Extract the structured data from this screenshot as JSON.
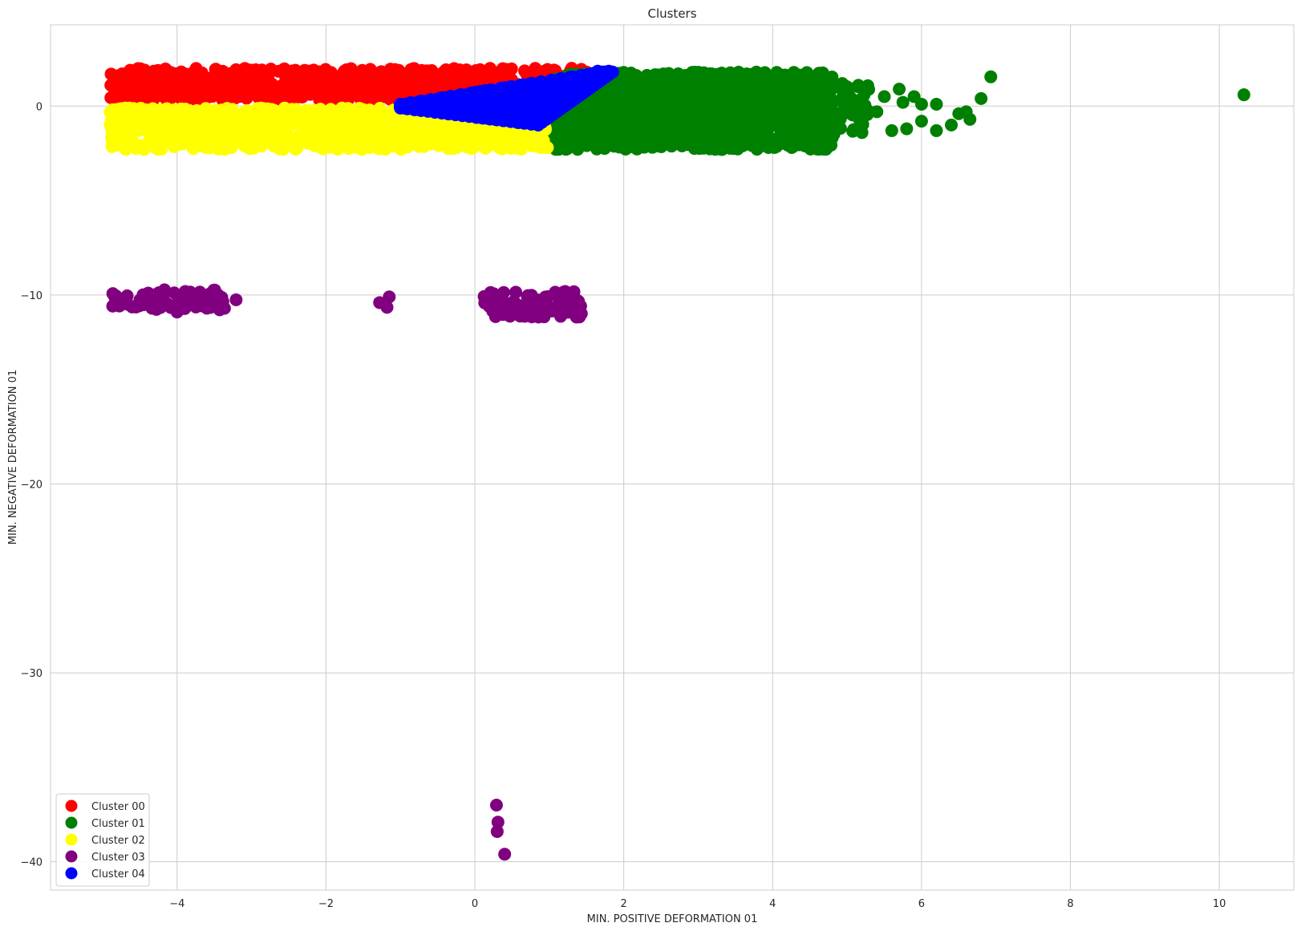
{
  "chart_data": {
    "type": "scatter",
    "title": "Clusters",
    "xlabel": "MIN. POSITIVE DEFORMATION 01",
    "ylabel": "MIN. NEGATIVE DEFORMATION 01",
    "xlim": [
      -5.7,
      11.0
    ],
    "ylim": [
      -41.5,
      4.3
    ],
    "xticks": [
      -4,
      -2,
      0,
      2,
      4,
      6,
      8,
      10
    ],
    "yticks": [
      0,
      -10,
      -20,
      -30,
      -40
    ],
    "xtick_labels": [
      "−4",
      "−2",
      "0",
      "2",
      "4",
      "6",
      "8",
      "10"
    ],
    "ytick_labels": [
      "0",
      "−10",
      "−20",
      "−30",
      "−40"
    ],
    "grid": true,
    "legend_position": "lower-left",
    "series": [
      {
        "name": "Cluster 00",
        "color": "#ff0000",
        "regions": [
          {
            "x": [
              -4.8,
              1.5
            ],
            "y": [
              0.3,
              2.0
            ],
            "count": 900
          },
          {
            "x": [
              -4.9,
              -4.3
            ],
            "y": [
              0.3,
              1.9
            ],
            "count": 60
          }
        ],
        "points": [
          {
            "x": -4.4,
            "y": 0.2
          },
          {
            "x": -4.8,
            "y": 1.4
          },
          {
            "x": 1.5,
            "y": 1.8
          },
          {
            "x": 1.3,
            "y": 2.0
          },
          {
            "x": -1.0,
            "y": 0.1
          }
        ]
      },
      {
        "name": "Cluster 01",
        "color": "#008000",
        "regions": [
          {
            "x": [
              1.0,
              4.8
            ],
            "y": [
              -2.3,
              1.8
            ],
            "count": 1400
          },
          {
            "x": [
              4.5,
              5.3
            ],
            "y": [
              -1.5,
              1.2
            ],
            "count": 80
          }
        ],
        "points": [
          {
            "x": 5.5,
            "y": 0.5
          },
          {
            "x": 5.7,
            "y": 0.9
          },
          {
            "x": 5.9,
            "y": 0.5
          },
          {
            "x": 6.0,
            "y": 0.1
          },
          {
            "x": 6.2,
            "y": 0.1
          },
          {
            "x": 5.8,
            "y": -1.2
          },
          {
            "x": 6.0,
            "y": -0.8
          },
          {
            "x": 6.2,
            "y": -1.3
          },
          {
            "x": 6.4,
            "y": -1.0
          },
          {
            "x": 6.5,
            "y": -0.4
          },
          {
            "x": 6.6,
            "y": -0.3
          },
          {
            "x": 6.65,
            "y": -0.7
          },
          {
            "x": 6.8,
            "y": 0.4
          },
          {
            "x": 6.93,
            "y": 1.55
          },
          {
            "x": 10.33,
            "y": 0.6
          },
          {
            "x": 5.6,
            "y": -1.3
          },
          {
            "x": 5.75,
            "y": 0.2
          },
          {
            "x": 5.4,
            "y": -0.3
          },
          {
            "x": 5.2,
            "y": -1.4
          }
        ]
      },
      {
        "name": "Cluster 02",
        "color": "#ffff00",
        "regions": [
          {
            "x": [
              -4.9,
              1.0
            ],
            "y": [
              -2.3,
              -0.1
            ],
            "count": 900
          },
          {
            "x": [
              -4.9,
              -4.3
            ],
            "y": [
              -1.3,
              -0.1
            ],
            "count": 60
          }
        ],
        "points": [
          {
            "x": -4.4,
            "y": -0.3
          },
          {
            "x": -4.8,
            "y": -1.2
          }
        ]
      },
      {
        "name": "Cluster 03",
        "color": "#800080",
        "regions": [
          {
            "x": [
              -4.9,
              -3.2
            ],
            "y": [
              -10.8,
              -9.7
            ],
            "count": 70
          },
          {
            "x": [
              0.1,
              1.45
            ],
            "y": [
              -11.2,
              -9.8
            ],
            "count": 90
          }
        ],
        "points": [
          {
            "x": -1.28,
            "y": -10.4
          },
          {
            "x": -1.15,
            "y": -10.1
          },
          {
            "x": -1.18,
            "y": -10.65
          },
          {
            "x": -4.0,
            "y": -10.9
          },
          {
            "x": -3.6,
            "y": -10.7
          },
          {
            "x": 0.29,
            "y": -37.0
          },
          {
            "x": 0.31,
            "y": -37.9
          },
          {
            "x": 0.3,
            "y": -38.4
          },
          {
            "x": 0.4,
            "y": -39.6
          }
        ]
      },
      {
        "name": "Cluster 04",
        "color": "#0000ff",
        "regions": [
          {
            "polygon": [
              [
                -1.0,
                0.1
              ],
              [
                1.7,
                1.8
              ],
              [
                1.85,
                1.8
              ],
              [
                0.85,
                -1.0
              ],
              [
                -1.0,
                -0.1
              ]
            ],
            "count": 500
          }
        ],
        "points": [
          {
            "x": 1.65,
            "y": 1.85
          },
          {
            "x": 1.8,
            "y": 1.85
          },
          {
            "x": -1.0,
            "y": 0.0
          }
        ]
      }
    ]
  }
}
